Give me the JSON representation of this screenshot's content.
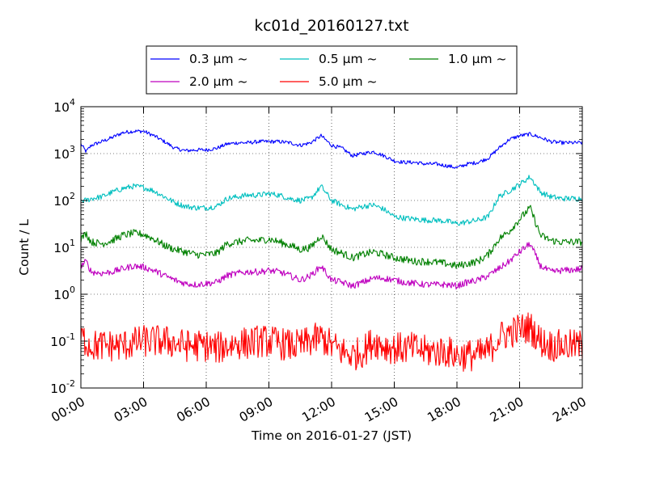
{
  "chart_data": {
    "type": "line",
    "title": "kc01d_20160127.txt",
    "xlabel": "Time on 2016-01-27 (JST)",
    "ylabel": "Count / L",
    "y_scale": "log",
    "ylim": [
      0.01,
      10000
    ],
    "xlim": [
      "00:00",
      "24:00"
    ],
    "x_ticks": [
      "00:00",
      "03:00",
      "06:00",
      "09:00",
      "12:00",
      "15:00",
      "18:00",
      "21:00",
      "24:00"
    ],
    "y_ticks": [
      {
        "base": "10",
        "exp": "-2"
      },
      {
        "base": "10",
        "exp": "-1"
      },
      {
        "base": "10",
        "exp": "0"
      },
      {
        "base": "10",
        "exp": "1"
      },
      {
        "base": "10",
        "exp": "2"
      },
      {
        "base": "10",
        "exp": "3"
      },
      {
        "base": "10",
        "exp": "4"
      }
    ],
    "grid": true,
    "legend_position": "top-center",
    "x_hours": [
      0,
      0.25,
      0.5,
      1,
      1.5,
      2,
      2.5,
      3,
      3.5,
      4,
      4.5,
      5,
      5.5,
      6,
      6.5,
      7,
      7.5,
      8,
      8.5,
      9,
      9.5,
      10,
      10.5,
      11,
      11.5,
      12,
      12.5,
      13,
      13.5,
      14,
      14.5,
      15,
      15.5,
      16,
      16.5,
      17,
      17.5,
      18,
      18.5,
      19,
      19.5,
      20,
      20.5,
      21,
      21.5,
      22,
      22.5,
      23,
      23.5,
      24
    ],
    "series": [
      {
        "name": "0.3 μm ~",
        "color": "#0000ff",
        "noise": 0.04,
        "values": [
          1600,
          1100,
          1500,
          1800,
          2200,
          2800,
          3000,
          3000,
          2400,
          1800,
          1300,
          1150,
          1200,
          1200,
          1300,
          1600,
          1700,
          1700,
          1800,
          1800,
          1800,
          1700,
          1500,
          1700,
          2400,
          1500,
          1300,
          900,
          1000,
          1100,
          900,
          700,
          650,
          650,
          600,
          600,
          550,
          500,
          600,
          650,
          800,
          1300,
          2000,
          2400,
          2600,
          2200,
          1800,
          1700,
          1700,
          1700
        ]
      },
      {
        "name": "0.5 μm ~",
        "color": "#00bfbf",
        "noise": 0.06,
        "values": [
          100,
          100,
          110,
          120,
          150,
          180,
          200,
          190,
          160,
          120,
          90,
          75,
          70,
          70,
          75,
          110,
          120,
          130,
          130,
          140,
          130,
          110,
          100,
          110,
          200,
          100,
          80,
          65,
          75,
          80,
          65,
          45,
          42,
          40,
          38,
          38,
          36,
          32,
          35,
          38,
          45,
          120,
          160,
          220,
          320,
          150,
          120,
          110,
          110,
          110
        ]
      },
      {
        "name": "1.0 μm ~",
        "color": "#008000",
        "noise": 0.08,
        "values": [
          15,
          20,
          13,
          12,
          14,
          18,
          20,
          19,
          15,
          11,
          9,
          8,
          7,
          7,
          7.5,
          12,
          13,
          14,
          14,
          15,
          13,
          11,
          9,
          10,
          18,
          9,
          7.5,
          6,
          7,
          8,
          7,
          6,
          5.5,
          5,
          5,
          4.8,
          4.5,
          4,
          4.5,
          5,
          7,
          15,
          22,
          40,
          70,
          18,
          14,
          13,
          13,
          13
        ]
      },
      {
        "name": "2.0 μm ~",
        "color": "#bf00bf",
        "noise": 0.07,
        "values": [
          4,
          5,
          3,
          2.8,
          3,
          3.5,
          4,
          3.8,
          3.2,
          2.5,
          2,
          1.7,
          1.6,
          1.7,
          1.8,
          2.5,
          2.8,
          3,
          3,
          3.2,
          3,
          2.5,
          2,
          2.5,
          4,
          2,
          1.8,
          1.5,
          1.8,
          2.2,
          2.2,
          2,
          1.8,
          1.7,
          1.6,
          1.6,
          1.6,
          1.5,
          1.8,
          2,
          2.5,
          3.5,
          5,
          8,
          12,
          4,
          3,
          3.2,
          3.3,
          3.5
        ]
      },
      {
        "name": "5.0 μm ~",
        "color": "#ff0000",
        "noise": 0.35,
        "values": [
          0.12,
          0.1,
          0.08,
          0.08,
          0.08,
          0.08,
          0.09,
          0.1,
          0.1,
          0.1,
          0.09,
          0.08,
          0.08,
          0.08,
          0.07,
          0.08,
          0.09,
          0.09,
          0.1,
          0.1,
          0.09,
          0.08,
          0.08,
          0.1,
          0.12,
          0.08,
          0.06,
          0.05,
          0.06,
          0.1,
          0.08,
          0.07,
          0.07,
          0.07,
          0.06,
          0.06,
          0.06,
          0.05,
          0.05,
          0.05,
          0.06,
          0.12,
          0.15,
          0.18,
          0.2,
          0.1,
          0.08,
          0.08,
          0.08,
          0.08
        ]
      }
    ]
  }
}
